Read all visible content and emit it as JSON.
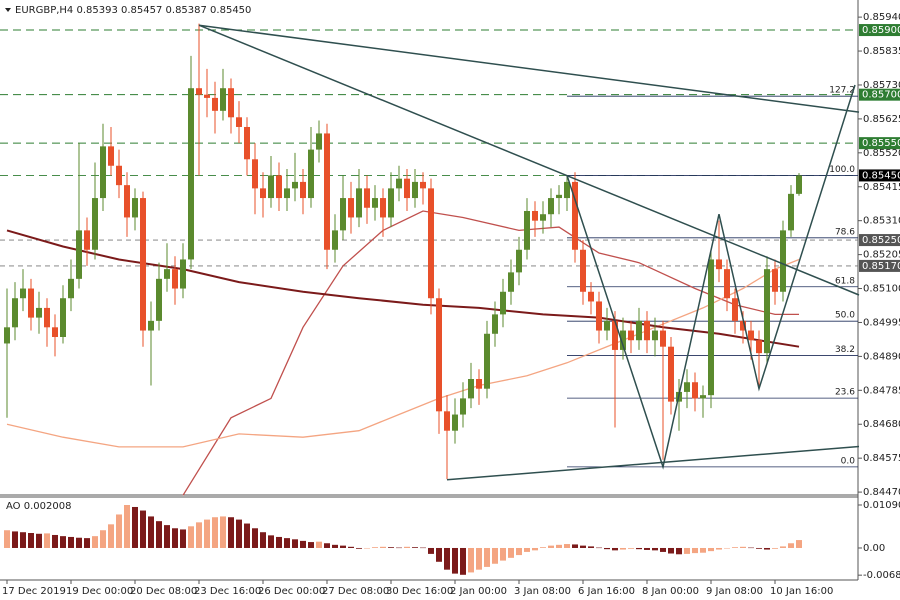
{
  "chart_data": {
    "type": "candlestick",
    "title": "EURGBP,H4  0.85393 0.85457 0.85387 0.85450",
    "up_color": "#5b8a2e",
    "down_color": "#e8502a",
    "ylim": [
      0.84461,
      0.85993
    ],
    "yticks": [
      {
        "value": 0.8594,
        "label": "0.85940"
      },
      {
        "value": 0.85835,
        "label": "0.85835"
      },
      {
        "value": 0.8573,
        "label": "0.85730"
      },
      {
        "value": 0.85625,
        "label": "0.85625"
      },
      {
        "value": 0.8552,
        "label": "0.85520"
      },
      {
        "value": 0.85415,
        "label": "0.85415"
      },
      {
        "value": 0.8531,
        "label": "0.85310"
      },
      {
        "value": 0.85205,
        "label": "0.85205"
      },
      {
        "value": 0.851,
        "label": "0.85100"
      },
      {
        "value": 0.84995,
        "label": "0.84995"
      },
      {
        "value": 0.8489,
        "label": "0.84890"
      },
      {
        "value": 0.84785,
        "label": "0.84785"
      },
      {
        "value": 0.8468,
        "label": "0.84680"
      },
      {
        "value": 0.84575,
        "label": "0.84575"
      },
      {
        "value": 0.8447,
        "label": "0.84470"
      }
    ],
    "xticks": [
      {
        "value": 0,
        "label": "17 Dec 2019"
      },
      {
        "value": 8,
        "label": "19 Dec 00:00"
      },
      {
        "value": 16,
        "label": "20 Dec 08:00"
      },
      {
        "value": 24,
        "label": "23 Dec 16:00"
      },
      {
        "value": 32,
        "label": "26 Dec 00:00"
      },
      {
        "value": 40,
        "label": "27 Dec 08:00"
      },
      {
        "value": 48,
        "label": "30 Dec 16:00"
      },
      {
        "value": 56,
        "label": "2 Jan 00:00"
      },
      {
        "value": 64,
        "label": "3 Jan 08:00"
      },
      {
        "value": 72,
        "label": "6 Jan 16:00"
      },
      {
        "value": 80,
        "label": "8 Jan 00:00"
      },
      {
        "value": 88,
        "label": "9 Jan 08:00"
      },
      {
        "value": 96,
        "label": "10 Jan 16:00"
      }
    ],
    "ohlc": [
      [
        0.8493,
        0.851,
        0.847,
        0.8498
      ],
      [
        0.8498,
        0.8512,
        0.8494,
        0.8507
      ],
      [
        0.8507,
        0.8516,
        0.8503,
        0.851
      ],
      [
        0.851,
        0.8513,
        0.8497,
        0.8501
      ],
      [
        0.8501,
        0.8509,
        0.8496,
        0.8504
      ],
      [
        0.8504,
        0.8507,
        0.8492,
        0.8498
      ],
      [
        0.8498,
        0.8502,
        0.8489,
        0.8495
      ],
      [
        0.8495,
        0.8511,
        0.8493,
        0.8507
      ],
      [
        0.8507,
        0.8519,
        0.8503,
        0.8513
      ],
      [
        0.8513,
        0.8555,
        0.851,
        0.8528
      ],
      [
        0.8528,
        0.8532,
        0.8517,
        0.8522
      ],
      [
        0.8522,
        0.8549,
        0.8519,
        0.8538
      ],
      [
        0.8538,
        0.8561,
        0.8534,
        0.8554
      ],
      [
        0.8554,
        0.856,
        0.8545,
        0.8548
      ],
      [
        0.8548,
        0.8553,
        0.8538,
        0.8542
      ],
      [
        0.8542,
        0.8546,
        0.8526,
        0.8532
      ],
      [
        0.8532,
        0.8541,
        0.8528,
        0.8538
      ],
      [
        0.8538,
        0.854,
        0.8492,
        0.8497
      ],
      [
        0.8497,
        0.8506,
        0.848,
        0.85
      ],
      [
        0.85,
        0.8518,
        0.8497,
        0.8513
      ],
      [
        0.8513,
        0.8524,
        0.8509,
        0.8516
      ],
      [
        0.8516,
        0.852,
        0.8505,
        0.851
      ],
      [
        0.851,
        0.8524,
        0.8507,
        0.8519
      ],
      [
        0.8519,
        0.8582,
        0.8516,
        0.8572
      ],
      [
        0.8572,
        0.8592,
        0.8545,
        0.857
      ],
      [
        0.857,
        0.8578,
        0.8563,
        0.8569
      ],
      [
        0.8569,
        0.8574,
        0.8558,
        0.8565
      ],
      [
        0.8565,
        0.8578,
        0.8562,
        0.8572
      ],
      [
        0.8572,
        0.8575,
        0.8558,
        0.8563
      ],
      [
        0.8563,
        0.8568,
        0.8555,
        0.856
      ],
      [
        0.856,
        0.8563,
        0.8545,
        0.855
      ],
      [
        0.855,
        0.8555,
        0.8533,
        0.8541
      ],
      [
        0.8541,
        0.8546,
        0.8532,
        0.8538
      ],
      [
        0.8538,
        0.8551,
        0.8535,
        0.8545
      ],
      [
        0.8545,
        0.8549,
        0.8534,
        0.8538
      ],
      [
        0.8538,
        0.8547,
        0.8534,
        0.8541
      ],
      [
        0.8541,
        0.8552,
        0.8537,
        0.8543
      ],
      [
        0.8543,
        0.8547,
        0.8533,
        0.8538
      ],
      [
        0.8538,
        0.856,
        0.8535,
        0.8553
      ],
      [
        0.8553,
        0.8562,
        0.8549,
        0.8558
      ],
      [
        0.8558,
        0.8561,
        0.8516,
        0.8522
      ],
      [
        0.8522,
        0.8533,
        0.8518,
        0.8528
      ],
      [
        0.8528,
        0.8545,
        0.8525,
        0.8538
      ],
      [
        0.8538,
        0.8543,
        0.8527,
        0.8532
      ],
      [
        0.8532,
        0.8547,
        0.8529,
        0.8541
      ],
      [
        0.8541,
        0.8545,
        0.853,
        0.8535
      ],
      [
        0.8535,
        0.8542,
        0.8531,
        0.8538
      ],
      [
        0.8538,
        0.8541,
        0.8526,
        0.8532
      ],
      [
        0.8532,
        0.8546,
        0.8529,
        0.8541
      ],
      [
        0.8541,
        0.8548,
        0.8537,
        0.8544
      ],
      [
        0.8544,
        0.8547,
        0.8534,
        0.8538
      ],
      [
        0.8538,
        0.8547,
        0.8535,
        0.8543
      ],
      [
        0.8543,
        0.8546,
        0.8536,
        0.8541
      ],
      [
        0.8541,
        0.8544,
        0.8502,
        0.8507
      ],
      [
        0.8507,
        0.851,
        0.8465,
        0.8472
      ],
      [
        0.8472,
        0.8477,
        0.8451,
        0.8466
      ],
      [
        0.8466,
        0.8476,
        0.8462,
        0.8471
      ],
      [
        0.8471,
        0.8481,
        0.8467,
        0.8476
      ],
      [
        0.8476,
        0.8487,
        0.8473,
        0.8482
      ],
      [
        0.8482,
        0.8485,
        0.8474,
        0.8479
      ],
      [
        0.8479,
        0.85,
        0.8476,
        0.8496
      ],
      [
        0.8496,
        0.8506,
        0.8492,
        0.8502
      ],
      [
        0.8502,
        0.8513,
        0.8498,
        0.8509
      ],
      [
        0.8509,
        0.8519,
        0.8505,
        0.8515
      ],
      [
        0.8515,
        0.8526,
        0.8511,
        0.8522
      ],
      [
        0.8522,
        0.8538,
        0.8519,
        0.8534
      ],
      [
        0.8534,
        0.8537,
        0.8526,
        0.8531
      ],
      [
        0.8531,
        0.8537,
        0.8527,
        0.8533
      ],
      [
        0.8533,
        0.8541,
        0.8529,
        0.8538
      ],
      [
        0.8538,
        0.8542,
        0.8533,
        0.8539
      ],
      [
        0.8538,
        0.8545,
        0.8534,
        0.8543
      ],
      [
        0.8543,
        0.8546,
        0.8518,
        0.8522
      ],
      [
        0.8522,
        0.8525,
        0.8505,
        0.8509
      ],
      [
        0.8509,
        0.8512,
        0.8502,
        0.8506
      ],
      [
        0.8506,
        0.8509,
        0.8493,
        0.8497
      ],
      [
        0.8497,
        0.8504,
        0.8494,
        0.85
      ],
      [
        0.85,
        0.8503,
        0.8467,
        0.8491
      ],
      [
        0.8491,
        0.8501,
        0.8488,
        0.8497
      ],
      [
        0.8497,
        0.85,
        0.849,
        0.8494
      ],
      [
        0.8494,
        0.8504,
        0.8491,
        0.85
      ],
      [
        0.85,
        0.8503,
        0.849,
        0.8494
      ],
      [
        0.8494,
        0.8501,
        0.8489,
        0.8497
      ],
      [
        0.8497,
        0.85,
        0.8457,
        0.8492
      ],
      [
        0.8492,
        0.8495,
        0.8471,
        0.8475
      ],
      [
        0.8475,
        0.8482,
        0.8466,
        0.8478
      ],
      [
        0.8478,
        0.8485,
        0.8473,
        0.8481
      ],
      [
        0.8481,
        0.8484,
        0.8472,
        0.8476
      ],
      [
        0.8476,
        0.848,
        0.847,
        0.8477
      ],
      [
        0.8477,
        0.8522,
        0.8473,
        0.8519
      ],
      [
        0.8519,
        0.8531,
        0.8512,
        0.8516
      ],
      [
        0.8516,
        0.8519,
        0.8503,
        0.8507
      ],
      [
        0.8507,
        0.851,
        0.8496,
        0.85
      ],
      [
        0.85,
        0.8503,
        0.8493,
        0.8497
      ],
      [
        0.8497,
        0.85,
        0.8488,
        0.8494
      ],
      [
        0.8494,
        0.8497,
        0.8479,
        0.849
      ],
      [
        0.849,
        0.852,
        0.8487,
        0.8516
      ],
      [
        0.8516,
        0.8519,
        0.8505,
        0.8509
      ],
      [
        0.8509,
        0.8531,
        0.8506,
        0.8528
      ],
      [
        0.8528,
        0.8542,
        0.8526,
        0.85393
      ],
      [
        0.85393,
        0.85457,
        0.85387,
        0.8545
      ]
    ],
    "moving_averages": [
      {
        "color": "#c0504d",
        "x": [
          22,
          28,
          33,
          37,
          42,
          47,
          52,
          57,
          64,
          69,
          74,
          79,
          86,
          91,
          96,
          99
        ],
        "values": [
          0.8446,
          0.847,
          0.8476,
          0.8498,
          0.8517,
          0.8528,
          0.8534,
          0.8532,
          0.8528,
          0.8529,
          0.8521,
          0.8518,
          0.851,
          0.8505,
          0.8502,
          0.8502
        ]
      },
      {
        "color": "#f4a582",
        "x": [
          0,
          7,
          14,
          22,
          29,
          37,
          44,
          49,
          54,
          59,
          65,
          70,
          74,
          79,
          87,
          92,
          96,
          99
        ],
        "values": [
          0.8468,
          0.8464,
          0.8461,
          0.8461,
          0.8465,
          0.8464,
          0.8466,
          0.8471,
          0.8476,
          0.848,
          0.8483,
          0.8487,
          0.8491,
          0.8496,
          0.8504,
          0.851,
          0.8516,
          0.8519
        ]
      },
      {
        "color": "#7b1a1a",
        "x": [
          0,
          7,
          14,
          22,
          29,
          37,
          44,
          52,
          59,
          67,
          74,
          82,
          89,
          99
        ],
        "values": [
          0.8528,
          0.8523,
          0.8519,
          0.8516,
          0.8512,
          0.8509,
          0.8507,
          0.8505,
          0.8504,
          0.8502,
          0.8501,
          0.8498,
          0.8496,
          0.8492
        ]
      }
    ],
    "lines": [
      {
        "x": [
          24,
          106.5
        ],
        "values": [
          0.85915,
          0.85646
        ]
      },
      {
        "x": [
          24,
          106.5
        ],
        "values": [
          0.85915,
          0.8508
        ]
      },
      {
        "x": [
          55,
          106.5
        ],
        "values": [
          0.84508,
          0.84611
        ]
      },
      {
        "x": [
          70,
          82,
          89,
          94,
          106
        ],
        "values": [
          0.8545,
          0.84548,
          0.8533,
          0.8479,
          0.8573
        ]
      }
    ],
    "levels": [
      {
        "value": 0.859,
        "label": "0.85900",
        "color": "#2e7d32"
      },
      {
        "value": 0.857,
        "label": "0.85700",
        "color": "#2e7d32"
      },
      {
        "value": 0.8555,
        "label": "0.85550",
        "color": "#2e7d32"
      },
      {
        "value": 0.8545,
        "label": "0.85450",
        "color": "#000000"
      },
      {
        "value": 0.8525,
        "label": "0.85250",
        "color": "#555555"
      },
      {
        "value": 0.8517,
        "label": "0.85170",
        "color": "#555555"
      }
    ],
    "fib": {
      "start": 70,
      "high": 0.8545,
      "low": 0.84548,
      "levels": [
        127.2,
        {
          "value": 100,
          "label": "100.0"
        },
        78.6,
        61.8,
        {
          "value": 50,
          "label": "50.0"
        },
        38.2,
        23.6,
        {
          "value": 0,
          "label": "0.0"
        }
      ]
    },
    "ao": {
      "title": "AO 0.002008",
      "up_color": "#f4a582",
      "down_color": "#7b1a1a",
      "ylim": [
        -0.00812,
        0.01293
      ],
      "yticks": [
        0.010905,
        {
          "value": 0,
          "label": "0.00"
        },
        -0.006894
      ],
      "values": [
        0.0045,
        0.0042,
        0.004,
        0.0038,
        0.0036,
        0.0037,
        0.0033,
        0.003,
        0.0028,
        0.0026,
        0.0025,
        0.003,
        0.0045,
        0.006,
        0.0085,
        0.0109,
        0.0104,
        0.0095,
        0.008,
        0.0068,
        0.0058,
        0.005,
        0.0047,
        0.0055,
        0.0065,
        0.0072,
        0.0078,
        0.008,
        0.0078,
        0.0072,
        0.0062,
        0.005,
        0.004,
        0.0032,
        0.0028,
        0.0025,
        0.0022,
        0.0018,
        0.0015,
        0.0016,
        0.0012,
        0.0008,
        0.0006,
        0.0003,
        -0.0002,
        -0.0001,
        0.0002,
        0.0003,
        0.0002,
        0.0001,
        0.0003,
        0.0002,
        0.0001,
        -0.0015,
        -0.0035,
        -0.0055,
        -0.0065,
        -0.0068,
        -0.0062,
        -0.0055,
        -0.0048,
        -0.004,
        -0.0032,
        -0.0025,
        -0.0018,
        -0.001,
        -0.0006,
        0.0002,
        0.0006,
        0.0008,
        0.001,
        0.0009,
        0.0006,
        0.0004,
        0.0001,
        -0.0003,
        -0.0006,
        -0.0004,
        -0.0002,
        -0.0003,
        -0.0005,
        -0.0006,
        -0.001,
        -0.0014,
        -0.0016,
        -0.0015,
        -0.0013,
        -0.0012,
        -0.0008,
        -0.0004,
        -0.0001,
        0.0002,
        0.0003,
        0.0001,
        -0.0002,
        -0.0004,
        -0.0002,
        0.0004,
        0.0012,
        0.002008
      ]
    }
  }
}
